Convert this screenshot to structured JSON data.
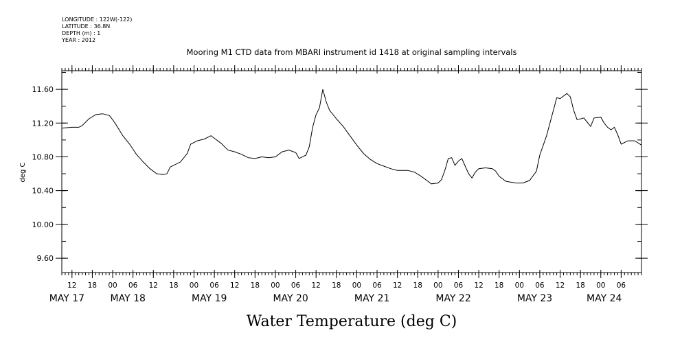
{
  "header": {
    "longitude": "LONGITUDE : 122W(-122)",
    "latitude": "LATITUDE : 36.8N",
    "depth": "DEPTH (m) : 1",
    "year": "YEAR : 2012"
  },
  "chart_data": {
    "type": "line",
    "title": "Mooring M1 CTD data from MBARI instrument id 1418 at original sampling intervals",
    "xlabel": "Water Temperature (deg C)",
    "ylabel": "deg C",
    "x_unit": "date-time (May 2012)",
    "xlim": [
      "2012-05-17T09:00",
      "2012-05-24T12:00"
    ],
    "ylim": [
      9.43,
      11.82
    ],
    "yticks": [
      {
        "value": 9.6,
        "label": "9.60"
      },
      {
        "value": 10.0,
        "label": "10.00"
      },
      {
        "value": 10.4,
        "label": "10.40"
      },
      {
        "value": 10.8,
        "label": "10.80"
      },
      {
        "value": 11.2,
        "label": "11.20"
      },
      {
        "value": 11.6,
        "label": "11.60"
      }
    ],
    "yminor_step": 0.2,
    "hour_ticks": [
      {
        "t": "2012-05-17T12:00",
        "label": "12"
      },
      {
        "t": "2012-05-17T18:00",
        "label": "18"
      },
      {
        "t": "2012-05-18T00:00",
        "label": "00"
      },
      {
        "t": "2012-05-18T06:00",
        "label": "06"
      },
      {
        "t": "2012-05-18T12:00",
        "label": "12"
      },
      {
        "t": "2012-05-18T18:00",
        "label": "18"
      },
      {
        "t": "2012-05-19T00:00",
        "label": "00"
      },
      {
        "t": "2012-05-19T06:00",
        "label": "06"
      },
      {
        "t": "2012-05-19T12:00",
        "label": "12"
      },
      {
        "t": "2012-05-19T18:00",
        "label": "18"
      },
      {
        "t": "2012-05-20T00:00",
        "label": "00"
      },
      {
        "t": "2012-05-20T06:00",
        "label": "06"
      },
      {
        "t": "2012-05-20T12:00",
        "label": "12"
      },
      {
        "t": "2012-05-20T18:00",
        "label": "18"
      },
      {
        "t": "2012-05-21T00:00",
        "label": "00"
      },
      {
        "t": "2012-05-21T06:00",
        "label": "06"
      },
      {
        "t": "2012-05-21T12:00",
        "label": "12"
      },
      {
        "t": "2012-05-21T18:00",
        "label": "18"
      },
      {
        "t": "2012-05-22T00:00",
        "label": "00"
      },
      {
        "t": "2012-05-22T06:00",
        "label": "06"
      },
      {
        "t": "2012-05-22T12:00",
        "label": "12"
      },
      {
        "t": "2012-05-22T18:00",
        "label": "18"
      },
      {
        "t": "2012-05-23T00:00",
        "label": "00"
      },
      {
        "t": "2012-05-23T06:00",
        "label": "06"
      },
      {
        "t": "2012-05-23T12:00",
        "label": "12"
      },
      {
        "t": "2012-05-23T18:00",
        "label": "18"
      },
      {
        "t": "2012-05-24T00:00",
        "label": "00"
      },
      {
        "t": "2012-05-24T06:00",
        "label": "06"
      }
    ],
    "day_labels": [
      {
        "t": "2012-05-17T10:30",
        "label": "MAY 17"
      },
      {
        "t": "2012-05-18T04:30",
        "label": "MAY 18"
      },
      {
        "t": "2012-05-19T04:30",
        "label": "MAY 19"
      },
      {
        "t": "2012-05-20T04:30",
        "label": "MAY 20"
      },
      {
        "t": "2012-05-21T04:30",
        "label": "MAY 21"
      },
      {
        "t": "2012-05-22T04:30",
        "label": "MAY 22"
      },
      {
        "t": "2012-05-23T04:30",
        "label": "MAY 23"
      },
      {
        "t": "2012-05-24T01:00",
        "label": "MAY 24"
      }
    ],
    "series": [
      {
        "points": [
          [
            "2012-05-17T09:00",
            11.14
          ],
          [
            "2012-05-17T12:00",
            11.15
          ],
          [
            "2012-05-17T14:00",
            11.15
          ],
          [
            "2012-05-17T15:00",
            11.17
          ],
          [
            "2012-05-17T17:00",
            11.25
          ],
          [
            "2012-05-17T19:00",
            11.3
          ],
          [
            "2012-05-17T21:00",
            11.31
          ],
          [
            "2012-05-17T23:00",
            11.29
          ],
          [
            "2012-05-18T00:00",
            11.24
          ],
          [
            "2012-05-18T01:00",
            11.18
          ],
          [
            "2012-05-18T03:00",
            11.05
          ],
          [
            "2012-05-18T05:00",
            10.95
          ],
          [
            "2012-05-18T07:00",
            10.83
          ],
          [
            "2012-05-18T09:00",
            10.74
          ],
          [
            "2012-05-18T11:00",
            10.66
          ],
          [
            "2012-05-18T13:00",
            10.6
          ],
          [
            "2012-05-18T15:00",
            10.59
          ],
          [
            "2012-05-18T16:00",
            10.6
          ],
          [
            "2012-05-18T17:00",
            10.68
          ],
          [
            "2012-05-18T18:00",
            10.7
          ],
          [
            "2012-05-18T20:00",
            10.74
          ],
          [
            "2012-05-18T22:00",
            10.84
          ],
          [
            "2012-05-18T23:00",
            10.95
          ],
          [
            "2012-05-19T01:00",
            10.99
          ],
          [
            "2012-05-19T03:00",
            11.01
          ],
          [
            "2012-05-19T05:00",
            11.05
          ],
          [
            "2012-05-19T06:00",
            11.02
          ],
          [
            "2012-05-19T08:00",
            10.96
          ],
          [
            "2012-05-19T10:00",
            10.88
          ],
          [
            "2012-05-19T12:00",
            10.86
          ],
          [
            "2012-05-19T14:00",
            10.83
          ],
          [
            "2012-05-19T16:00",
            10.79
          ],
          [
            "2012-05-19T18:00",
            10.78
          ],
          [
            "2012-05-19T20:00",
            10.8
          ],
          [
            "2012-05-19T22:00",
            10.79
          ],
          [
            "2012-05-20T00:00",
            10.8
          ],
          [
            "2012-05-20T02:00",
            10.86
          ],
          [
            "2012-05-20T04:00",
            10.88
          ],
          [
            "2012-05-20T06:00",
            10.85
          ],
          [
            "2012-05-20T07:00",
            10.78
          ],
          [
            "2012-05-20T09:00",
            10.82
          ],
          [
            "2012-05-20T10:00",
            10.92
          ],
          [
            "2012-05-20T11:00",
            11.15
          ],
          [
            "2012-05-20T12:00",
            11.3
          ],
          [
            "2012-05-20T13:00",
            11.38
          ],
          [
            "2012-05-20T14:00",
            11.6
          ],
          [
            "2012-05-20T15:00",
            11.45
          ],
          [
            "2012-05-20T16:00",
            11.35
          ],
          [
            "2012-05-20T18:00",
            11.25
          ],
          [
            "2012-05-20T20:00",
            11.16
          ],
          [
            "2012-05-20T22:00",
            11.05
          ],
          [
            "2012-05-21T00:00",
            10.94
          ],
          [
            "2012-05-21T02:00",
            10.84
          ],
          [
            "2012-05-21T04:00",
            10.77
          ],
          [
            "2012-05-21T06:00",
            10.72
          ],
          [
            "2012-05-21T08:00",
            10.69
          ],
          [
            "2012-05-21T10:00",
            10.66
          ],
          [
            "2012-05-21T12:00",
            10.64
          ],
          [
            "2012-05-21T15:00",
            10.64
          ],
          [
            "2012-05-21T17:00",
            10.62
          ],
          [
            "2012-05-21T19:00",
            10.57
          ],
          [
            "2012-05-21T21:00",
            10.51
          ],
          [
            "2012-05-21T22:00",
            10.48
          ],
          [
            "2012-05-22T00:00",
            10.49
          ],
          [
            "2012-05-22T01:00",
            10.53
          ],
          [
            "2012-05-22T02:00",
            10.64
          ],
          [
            "2012-05-22T03:00",
            10.78
          ],
          [
            "2012-05-22T04:00",
            10.79
          ],
          [
            "2012-05-22T05:00",
            10.7
          ],
          [
            "2012-05-22T06:00",
            10.75
          ],
          [
            "2012-05-22T07:00",
            10.78
          ],
          [
            "2012-05-22T08:00",
            10.69
          ],
          [
            "2012-05-22T09:00",
            10.6
          ],
          [
            "2012-05-22T10:00",
            10.55
          ],
          [
            "2012-05-22T11:00",
            10.62
          ],
          [
            "2012-05-22T12:00",
            10.66
          ],
          [
            "2012-05-22T14:00",
            10.67
          ],
          [
            "2012-05-22T16:00",
            10.66
          ],
          [
            "2012-05-22T17:00",
            10.63
          ],
          [
            "2012-05-22T18:00",
            10.57
          ],
          [
            "2012-05-22T20:00",
            10.51
          ],
          [
            "2012-05-22T23:00",
            10.49
          ],
          [
            "2012-05-23T01:00",
            10.49
          ],
          [
            "2012-05-23T03:00",
            10.52
          ],
          [
            "2012-05-23T05:00",
            10.63
          ],
          [
            "2012-05-23T06:00",
            10.82
          ],
          [
            "2012-05-23T08:00",
            11.05
          ],
          [
            "2012-05-23T09:00",
            11.2
          ],
          [
            "2012-05-23T10:00",
            11.35
          ],
          [
            "2012-05-23T11:00",
            11.5
          ],
          [
            "2012-05-23T12:00",
            11.49
          ],
          [
            "2012-05-23T14:00",
            11.55
          ],
          [
            "2012-05-23T15:00",
            11.51
          ],
          [
            "2012-05-23T16:00",
            11.35
          ],
          [
            "2012-05-23T17:00",
            11.24
          ],
          [
            "2012-05-23T19:00",
            11.26
          ],
          [
            "2012-05-23T20:00",
            11.21
          ],
          [
            "2012-05-23T21:00",
            11.16
          ],
          [
            "2012-05-23T22:00",
            11.26
          ],
          [
            "2012-05-24T00:00",
            11.27
          ],
          [
            "2012-05-24T01:00",
            11.2
          ],
          [
            "2012-05-24T02:00",
            11.15
          ],
          [
            "2012-05-24T03:00",
            11.12
          ],
          [
            "2012-05-24T04:00",
            11.15
          ],
          [
            "2012-05-24T05:00",
            11.06
          ],
          [
            "2012-05-24T06:00",
            10.95
          ],
          [
            "2012-05-24T08:00",
            10.99
          ],
          [
            "2012-05-24T10:00",
            10.99
          ],
          [
            "2012-05-24T12:00",
            10.94
          ]
        ]
      }
    ]
  }
}
